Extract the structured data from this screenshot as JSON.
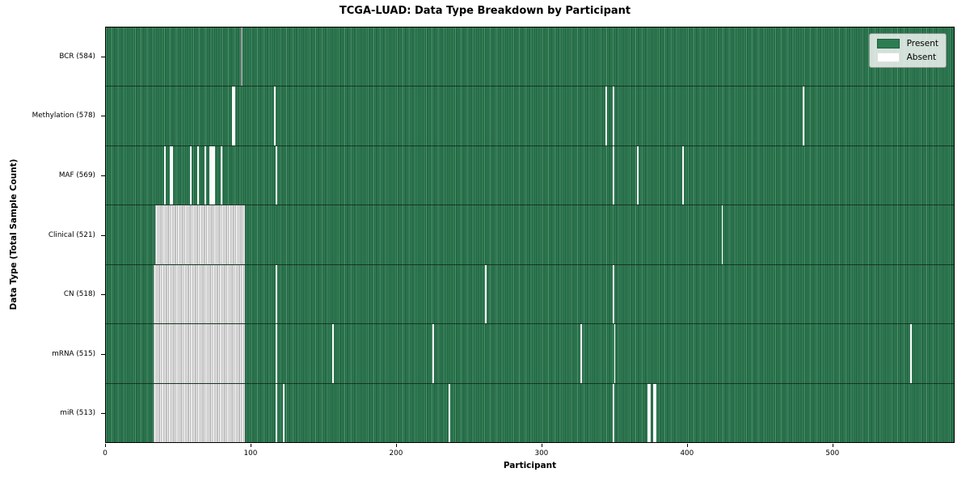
{
  "title": "TCGA-LUAD: Data Type Breakdown by Participant",
  "xlabel": "Participant",
  "ylabel": "Data Type (Total Sample Count)",
  "legend": {
    "present_label": "Present",
    "absent_label": "Absent"
  },
  "colors": {
    "present_green": "#2e7d52",
    "present_dark_edge": "#1f603e",
    "present_light_stripe": "#43936a",
    "absent_white": "#ffffff",
    "absent_gray_edge": "#ababab",
    "artifact_gray": "#9a9a9a",
    "legend_bg": "#eceeec"
  },
  "chart_data": {
    "type": "heatmap",
    "title": "TCGA-LUAD: Data Type Breakdown by Participant",
    "xlabel": "Participant",
    "ylabel": "Data Type (Total Sample Count)",
    "legend_entries": [
      "Present",
      "Absent"
    ],
    "legend_position": "upper right",
    "total_participants": 584,
    "x_range": [
      0,
      584
    ],
    "x_ticks": [
      0,
      100,
      200,
      300,
      400,
      500
    ],
    "rows": [
      {
        "key": "bcr",
        "label": "BCR (584)",
        "data_type": "BCR",
        "sample_count": 584,
        "absent_blocks": [],
        "absent_singles": [],
        "gray_artifacts": [
          93
        ]
      },
      {
        "key": "methylation",
        "label": "Methylation (578)",
        "data_type": "Methylation",
        "sample_count": 578,
        "absent_blocks": [],
        "absent_singles": [
          87,
          88,
          116,
          344,
          349,
          480
        ],
        "gray_artifacts": []
      },
      {
        "key": "maf",
        "label": "MAF (569)",
        "data_type": "MAF",
        "sample_count": 569,
        "absent_blocks": [],
        "absent_singles": [
          40,
          44,
          45,
          58,
          63,
          68,
          71,
          72,
          73,
          74,
          79,
          117,
          349,
          366,
          397
        ],
        "gray_artifacts": []
      },
      {
        "key": "clinical",
        "label": "Clinical (521)",
        "data_type": "Clinical",
        "sample_count": 521,
        "absent_blocks": [
          [
            34,
            95
          ]
        ],
        "absent_singles": [
          424
        ],
        "gray_artifacts": []
      },
      {
        "key": "cn",
        "label": "CN (518)",
        "data_type": "CN",
        "sample_count": 518,
        "absent_blocks": [
          [
            33,
            95
          ]
        ],
        "absent_singles": [
          117,
          261,
          349
        ],
        "gray_artifacts": []
      },
      {
        "key": "mrna",
        "label": "mRNA (515)",
        "data_type": "mRNA",
        "sample_count": 515,
        "absent_blocks": [
          [
            33,
            95
          ]
        ],
        "absent_singles": [
          117,
          156,
          225,
          327,
          350,
          554
        ],
        "gray_artifacts": []
      },
      {
        "key": "mir",
        "label": "miR (513)",
        "data_type": "miR",
        "sample_count": 513,
        "absent_blocks": [
          [
            33,
            95
          ]
        ],
        "absent_singles": [
          117,
          122,
          236,
          349,
          373,
          374,
          377,
          378
        ],
        "gray_artifacts": []
      }
    ]
  }
}
